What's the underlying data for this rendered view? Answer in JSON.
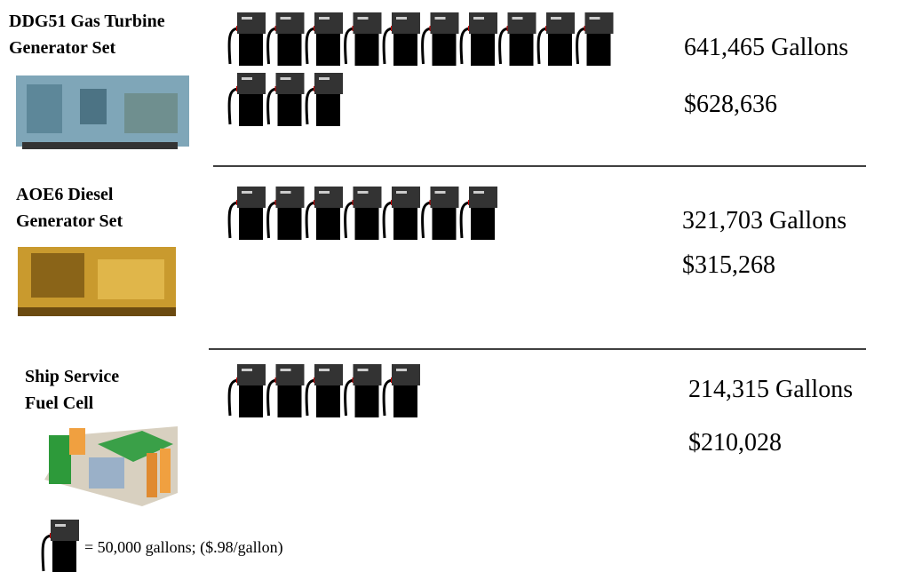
{
  "chart_data": {
    "type": "pictogram",
    "categories": [
      [
        "DDG51 Gas Turbine",
        "Generator Set"
      ],
      [
        "AOE6 Diesel",
        "Generator Set"
      ],
      [
        "Ship Service",
        "Fuel Cell"
      ]
    ],
    "values": [
      641465,
      321703,
      214315
    ],
    "value_labels": [
      "641,465 Gallons",
      "321,703 Gallons",
      "214,315 Gallons"
    ],
    "costs": [
      628636,
      315268,
      210028
    ],
    "cost_labels": [
      "$628,636",
      "$315,268",
      "$210,028"
    ],
    "unit_value": 50000,
    "unit_label": "= 50,000 gallons; ($.98/gallon)"
  }
}
